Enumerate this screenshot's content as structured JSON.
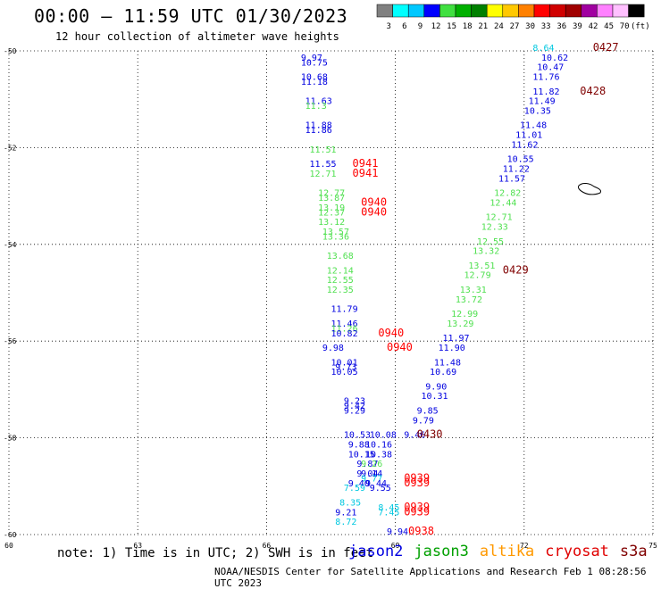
{
  "header": {
    "title": "00:00 – 11:59 UTC 01/30/2023",
    "subtitle": "12 hour collection of altimeter wave heights"
  },
  "colorbar": {
    "labels": [
      "3",
      "6",
      "9",
      "12",
      "15",
      "18",
      "21",
      "24",
      "27",
      "30",
      "33",
      "36",
      "39",
      "42",
      "45",
      "70",
      "(ft)"
    ],
    "colors": [
      "#808080",
      "#00ffff",
      "#00c8ff",
      "#0000ff",
      "#40e040",
      "#00b000",
      "#008000",
      "#ffff00",
      "#ffc800",
      "#ff8000",
      "#ff0000",
      "#d00000",
      "#a00000",
      "#a000a0",
      "#ff80ff",
      "#ffc0ff",
      "#000000"
    ]
  },
  "footer": {
    "note": "note: 1) Time is in UTC; 2) SWH is in feet",
    "credit": "NOAA/NESDIS Center for Satellite Applications and Research   Feb  1 08:28:56 UTC 2023"
  },
  "satellites": [
    {
      "name": "jason2",
      "color": "#0000e0"
    },
    {
      "name": "jason3",
      "color": "#00a000"
    },
    {
      "name": "altika",
      "color": "#ff9900"
    },
    {
      "name": "cryosat",
      "color": "#e00000"
    },
    {
      "name": "s3a",
      "color": "#800000"
    }
  ],
  "chart_data": {
    "type": "scatter",
    "xlim": [
      60,
      75
    ],
    "ylim": [
      -60,
      -50
    ],
    "x_ticks": [
      "60",
      "63",
      "66",
      "69",
      "72",
      "75"
    ],
    "y_ticks": [
      "-50",
      "-52",
      "-54",
      "-56",
      "-58",
      "-60"
    ],
    "grid": true,
    "points": [
      {
        "x": 66.8,
        "y": -50.2,
        "label": "9.97",
        "color": "#0000e0"
      },
      {
        "x": 66.8,
        "y": -50.3,
        "label": "10.75",
        "color": "#0000e0"
      },
      {
        "x": 66.8,
        "y": -50.6,
        "label": "10.68",
        "color": "#0000e0"
      },
      {
        "x": 66.8,
        "y": -50.7,
        "label": "11.18",
        "color": "#0000e0"
      },
      {
        "x": 66.9,
        "y": -51.1,
        "label": "11.63",
        "color": "#0000e0"
      },
      {
        "x": 66.9,
        "y": -51.2,
        "label": "11.3",
        "color": "#50e050"
      },
      {
        "x": 66.9,
        "y": -51.6,
        "label": "11.88",
        "color": "#0000e0"
      },
      {
        "x": 66.9,
        "y": -51.7,
        "label": "11.86",
        "color": "#0000e0"
      },
      {
        "x": 67.0,
        "y": -52.1,
        "label": "11.51",
        "color": "#50e050"
      },
      {
        "x": 67.0,
        "y": -52.4,
        "label": "11.55",
        "color": "#0000e0"
      },
      {
        "x": 67.0,
        "y": -52.6,
        "label": "12.71",
        "color": "#50e050"
      },
      {
        "x": 67.2,
        "y": -53.0,
        "label": "12.77",
        "color": "#50e050"
      },
      {
        "x": 67.2,
        "y": -53.1,
        "label": "13.87",
        "color": "#50e050"
      },
      {
        "x": 67.2,
        "y": -53.3,
        "label": "13.19",
        "color": "#50e050"
      },
      {
        "x": 67.2,
        "y": -53.4,
        "label": "12.37",
        "color": "#50e050"
      },
      {
        "x": 67.2,
        "y": -53.6,
        "label": "13.12",
        "color": "#50e050"
      },
      {
        "x": 67.3,
        "y": -53.8,
        "label": "13.57",
        "color": "#50e050"
      },
      {
        "x": 67.3,
        "y": -53.9,
        "label": "13.36",
        "color": "#50e050"
      },
      {
        "x": 67.4,
        "y": -54.3,
        "label": "13.68",
        "color": "#50e050"
      },
      {
        "x": 67.4,
        "y": -54.6,
        "label": "12.14",
        "color": "#50e050"
      },
      {
        "x": 67.4,
        "y": -54.8,
        "label": "12.55",
        "color": "#50e050"
      },
      {
        "x": 67.4,
        "y": -55.0,
        "label": "12.35",
        "color": "#50e050"
      },
      {
        "x": 67.5,
        "y": -55.4,
        "label": "11.79",
        "color": "#0000e0"
      },
      {
        "x": 67.5,
        "y": -55.7,
        "label": "11.46",
        "color": "#0000e0"
      },
      {
        "x": 67.5,
        "y": -55.8,
        "label": "11.26",
        "color": "#50e050"
      },
      {
        "x": 67.5,
        "y": -55.9,
        "label": "10.82",
        "color": "#0000e0"
      },
      {
        "x": 67.3,
        "y": -56.2,
        "label": "9.98",
        "color": "#0000e0"
      },
      {
        "x": 67.5,
        "y": -56.5,
        "label": "10.01",
        "color": "#0000e0"
      },
      {
        "x": 67.6,
        "y": -56.6,
        "label": "9.73",
        "color": "#0000e0"
      },
      {
        "x": 67.5,
        "y": -56.7,
        "label": "10.05",
        "color": "#0000e0"
      },
      {
        "x": 67.8,
        "y": -57.3,
        "label": "9.23",
        "color": "#0000e0"
      },
      {
        "x": 67.8,
        "y": -57.4,
        "label": "9.42",
        "color": "#0000e0"
      },
      {
        "x": 67.8,
        "y": -57.5,
        "label": "9.29",
        "color": "#0000e0"
      },
      {
        "x": 67.8,
        "y": -58.0,
        "label": "10.53",
        "color": "#0000e0"
      },
      {
        "x": 68.4,
        "y": -58.0,
        "label": "10.08",
        "color": "#0000e0"
      },
      {
        "x": 67.9,
        "y": -58.2,
        "label": "9.88",
        "color": "#0000e0"
      },
      {
        "x": 68.3,
        "y": -58.2,
        "label": "10.16",
        "color": "#0000e0"
      },
      {
        "x": 67.9,
        "y": -58.4,
        "label": "10.15",
        "color": "#0000e0"
      },
      {
        "x": 68.3,
        "y": -58.4,
        "label": "10.38",
        "color": "#0000e0"
      },
      {
        "x": 68.1,
        "y": -58.6,
        "label": "9.87",
        "color": "#0000e0"
      },
      {
        "x": 68.2,
        "y": -58.6,
        "label": "9.26",
        "color": "#50e050"
      },
      {
        "x": 68.1,
        "y": -58.8,
        "label": "9.04",
        "color": "#0000e0"
      },
      {
        "x": 68.2,
        "y": -58.8,
        "label": "9.14",
        "color": "#0000e0"
      },
      {
        "x": 68.2,
        "y": -58.9,
        "label": "9.77",
        "color": "#00c8e0"
      },
      {
        "x": 67.9,
        "y": -59.0,
        "label": "9.40",
        "color": "#0000e0"
      },
      {
        "x": 68.3,
        "y": -59.0,
        "label": "9.44",
        "color": "#0000e0"
      },
      {
        "x": 67.8,
        "y": -59.1,
        "label": "7.59",
        "color": "#00c8e0"
      },
      {
        "x": 68.4,
        "y": -59.1,
        "label": "9.55",
        "color": "#0000e0"
      },
      {
        "x": 67.7,
        "y": -59.4,
        "label": "8.35",
        "color": "#00c8e0"
      },
      {
        "x": 68.6,
        "y": -59.5,
        "label": "8.45",
        "color": "#00c8e0"
      },
      {
        "x": 67.6,
        "y": -59.6,
        "label": "9.21",
        "color": "#0000e0"
      },
      {
        "x": 68.6,
        "y": -59.6,
        "label": "7.45",
        "color": "#00c8e0"
      },
      {
        "x": 67.6,
        "y": -59.8,
        "label": "8.72",
        "color": "#00c8e0"
      },
      {
        "x": 68.8,
        "y": -60.0,
        "label": "9.94",
        "color": "#0000e0"
      },
      {
        "x": 72.2,
        "y": -50.0,
        "label": "8.64",
        "color": "#00c8e0"
      },
      {
        "x": 72.4,
        "y": -50.2,
        "label": "10.62",
        "color": "#0000e0"
      },
      {
        "x": 72.3,
        "y": -50.4,
        "label": "10.47",
        "color": "#0000e0"
      },
      {
        "x": 72.2,
        "y": -50.6,
        "label": "11.76",
        "color": "#0000e0"
      },
      {
        "x": 72.2,
        "y": -50.9,
        "label": "11.82",
        "color": "#0000e0"
      },
      {
        "x": 72.1,
        "y": -51.1,
        "label": "11.49",
        "color": "#0000e0"
      },
      {
        "x": 72.0,
        "y": -51.3,
        "label": "10.35",
        "color": "#0000e0"
      },
      {
        "x": 71.9,
        "y": -51.6,
        "label": "11.48",
        "color": "#0000e0"
      },
      {
        "x": 71.8,
        "y": -51.8,
        "label": "11.01",
        "color": "#0000e0"
      },
      {
        "x": 71.7,
        "y": -52.0,
        "label": "11.62",
        "color": "#0000e0"
      },
      {
        "x": 71.6,
        "y": -52.3,
        "label": "10.55",
        "color": "#0000e0"
      },
      {
        "x": 71.5,
        "y": -52.5,
        "label": "11.22",
        "color": "#0000e0"
      },
      {
        "x": 71.4,
        "y": -52.7,
        "label": "11.57",
        "color": "#0000e0"
      },
      {
        "x": 71.3,
        "y": -53.0,
        "label": "12.82",
        "color": "#50e050"
      },
      {
        "x": 71.2,
        "y": -53.2,
        "label": "12.44",
        "color": "#50e050"
      },
      {
        "x": 71.1,
        "y": -53.5,
        "label": "12.71",
        "color": "#50e050"
      },
      {
        "x": 71.0,
        "y": -53.7,
        "label": "12.33",
        "color": "#50e050"
      },
      {
        "x": 70.9,
        "y": -54.0,
        "label": "12.55",
        "color": "#50e050"
      },
      {
        "x": 70.8,
        "y": -54.2,
        "label": "13.32",
        "color": "#50e050"
      },
      {
        "x": 70.7,
        "y": -54.5,
        "label": "13.51",
        "color": "#50e050"
      },
      {
        "x": 70.6,
        "y": -54.7,
        "label": "12.79",
        "color": "#50e050"
      },
      {
        "x": 70.5,
        "y": -55.0,
        "label": "13.31",
        "color": "#50e050"
      },
      {
        "x": 70.4,
        "y": -55.2,
        "label": "13.72",
        "color": "#50e050"
      },
      {
        "x": 70.3,
        "y": -55.5,
        "label": "12.99",
        "color": "#50e050"
      },
      {
        "x": 70.2,
        "y": -55.7,
        "label": "13.29",
        "color": "#50e050"
      },
      {
        "x": 70.1,
        "y": -56.0,
        "label": "11.97",
        "color": "#0000e0"
      },
      {
        "x": 70.0,
        "y": -56.2,
        "label": "11.90",
        "color": "#0000e0"
      },
      {
        "x": 69.9,
        "y": -56.5,
        "label": "11.48",
        "color": "#0000e0"
      },
      {
        "x": 69.8,
        "y": -56.7,
        "label": "10.69",
        "color": "#0000e0"
      },
      {
        "x": 69.7,
        "y": -57.0,
        "label": "9.90",
        "color": "#0000e0"
      },
      {
        "x": 69.6,
        "y": -57.2,
        "label": "10.31",
        "color": "#0000e0"
      },
      {
        "x": 69.5,
        "y": -57.5,
        "label": "9.85",
        "color": "#0000e0"
      },
      {
        "x": 69.4,
        "y": -57.7,
        "label": "9.79",
        "color": "#0000e0"
      },
      {
        "x": 69.2,
        "y": -58.0,
        "label": "9.46",
        "color": "#0000e0"
      }
    ],
    "pass_times": [
      {
        "x": 73.6,
        "y": -50.0,
        "label": "0427",
        "color": "#800000"
      },
      {
        "x": 73.3,
        "y": -50.9,
        "label": "0428",
        "color": "#800000"
      },
      {
        "x": 71.5,
        "y": -54.6,
        "label": "0429",
        "color": "#800000"
      },
      {
        "x": 69.5,
        "y": -58.0,
        "label": "0430",
        "color": "#800000"
      },
      {
        "x": 68.0,
        "y": -52.4,
        "label": "0941",
        "color": "#ff0000"
      },
      {
        "x": 68.0,
        "y": -52.6,
        "label": "0941",
        "color": "#ff0000"
      },
      {
        "x": 68.2,
        "y": -53.2,
        "label": "0940",
        "color": "#ff0000"
      },
      {
        "x": 68.2,
        "y": -53.4,
        "label": "0940",
        "color": "#ff0000"
      },
      {
        "x": 68.6,
        "y": -55.9,
        "label": "0940",
        "color": "#ff0000"
      },
      {
        "x": 68.8,
        "y": -56.2,
        "label": "0940",
        "color": "#ff0000"
      },
      {
        "x": 69.2,
        "y": -58.9,
        "label": "0939",
        "color": "#ff0000"
      },
      {
        "x": 69.2,
        "y": -59.0,
        "label": "0939",
        "color": "#ff0000"
      },
      {
        "x": 69.2,
        "y": -59.5,
        "label": "0939",
        "color": "#ff0000"
      },
      {
        "x": 69.2,
        "y": -59.6,
        "label": "0939",
        "color": "#ff0000"
      },
      {
        "x": 69.3,
        "y": -60.0,
        "label": "0938",
        "color": "#ff0000"
      }
    ]
  }
}
